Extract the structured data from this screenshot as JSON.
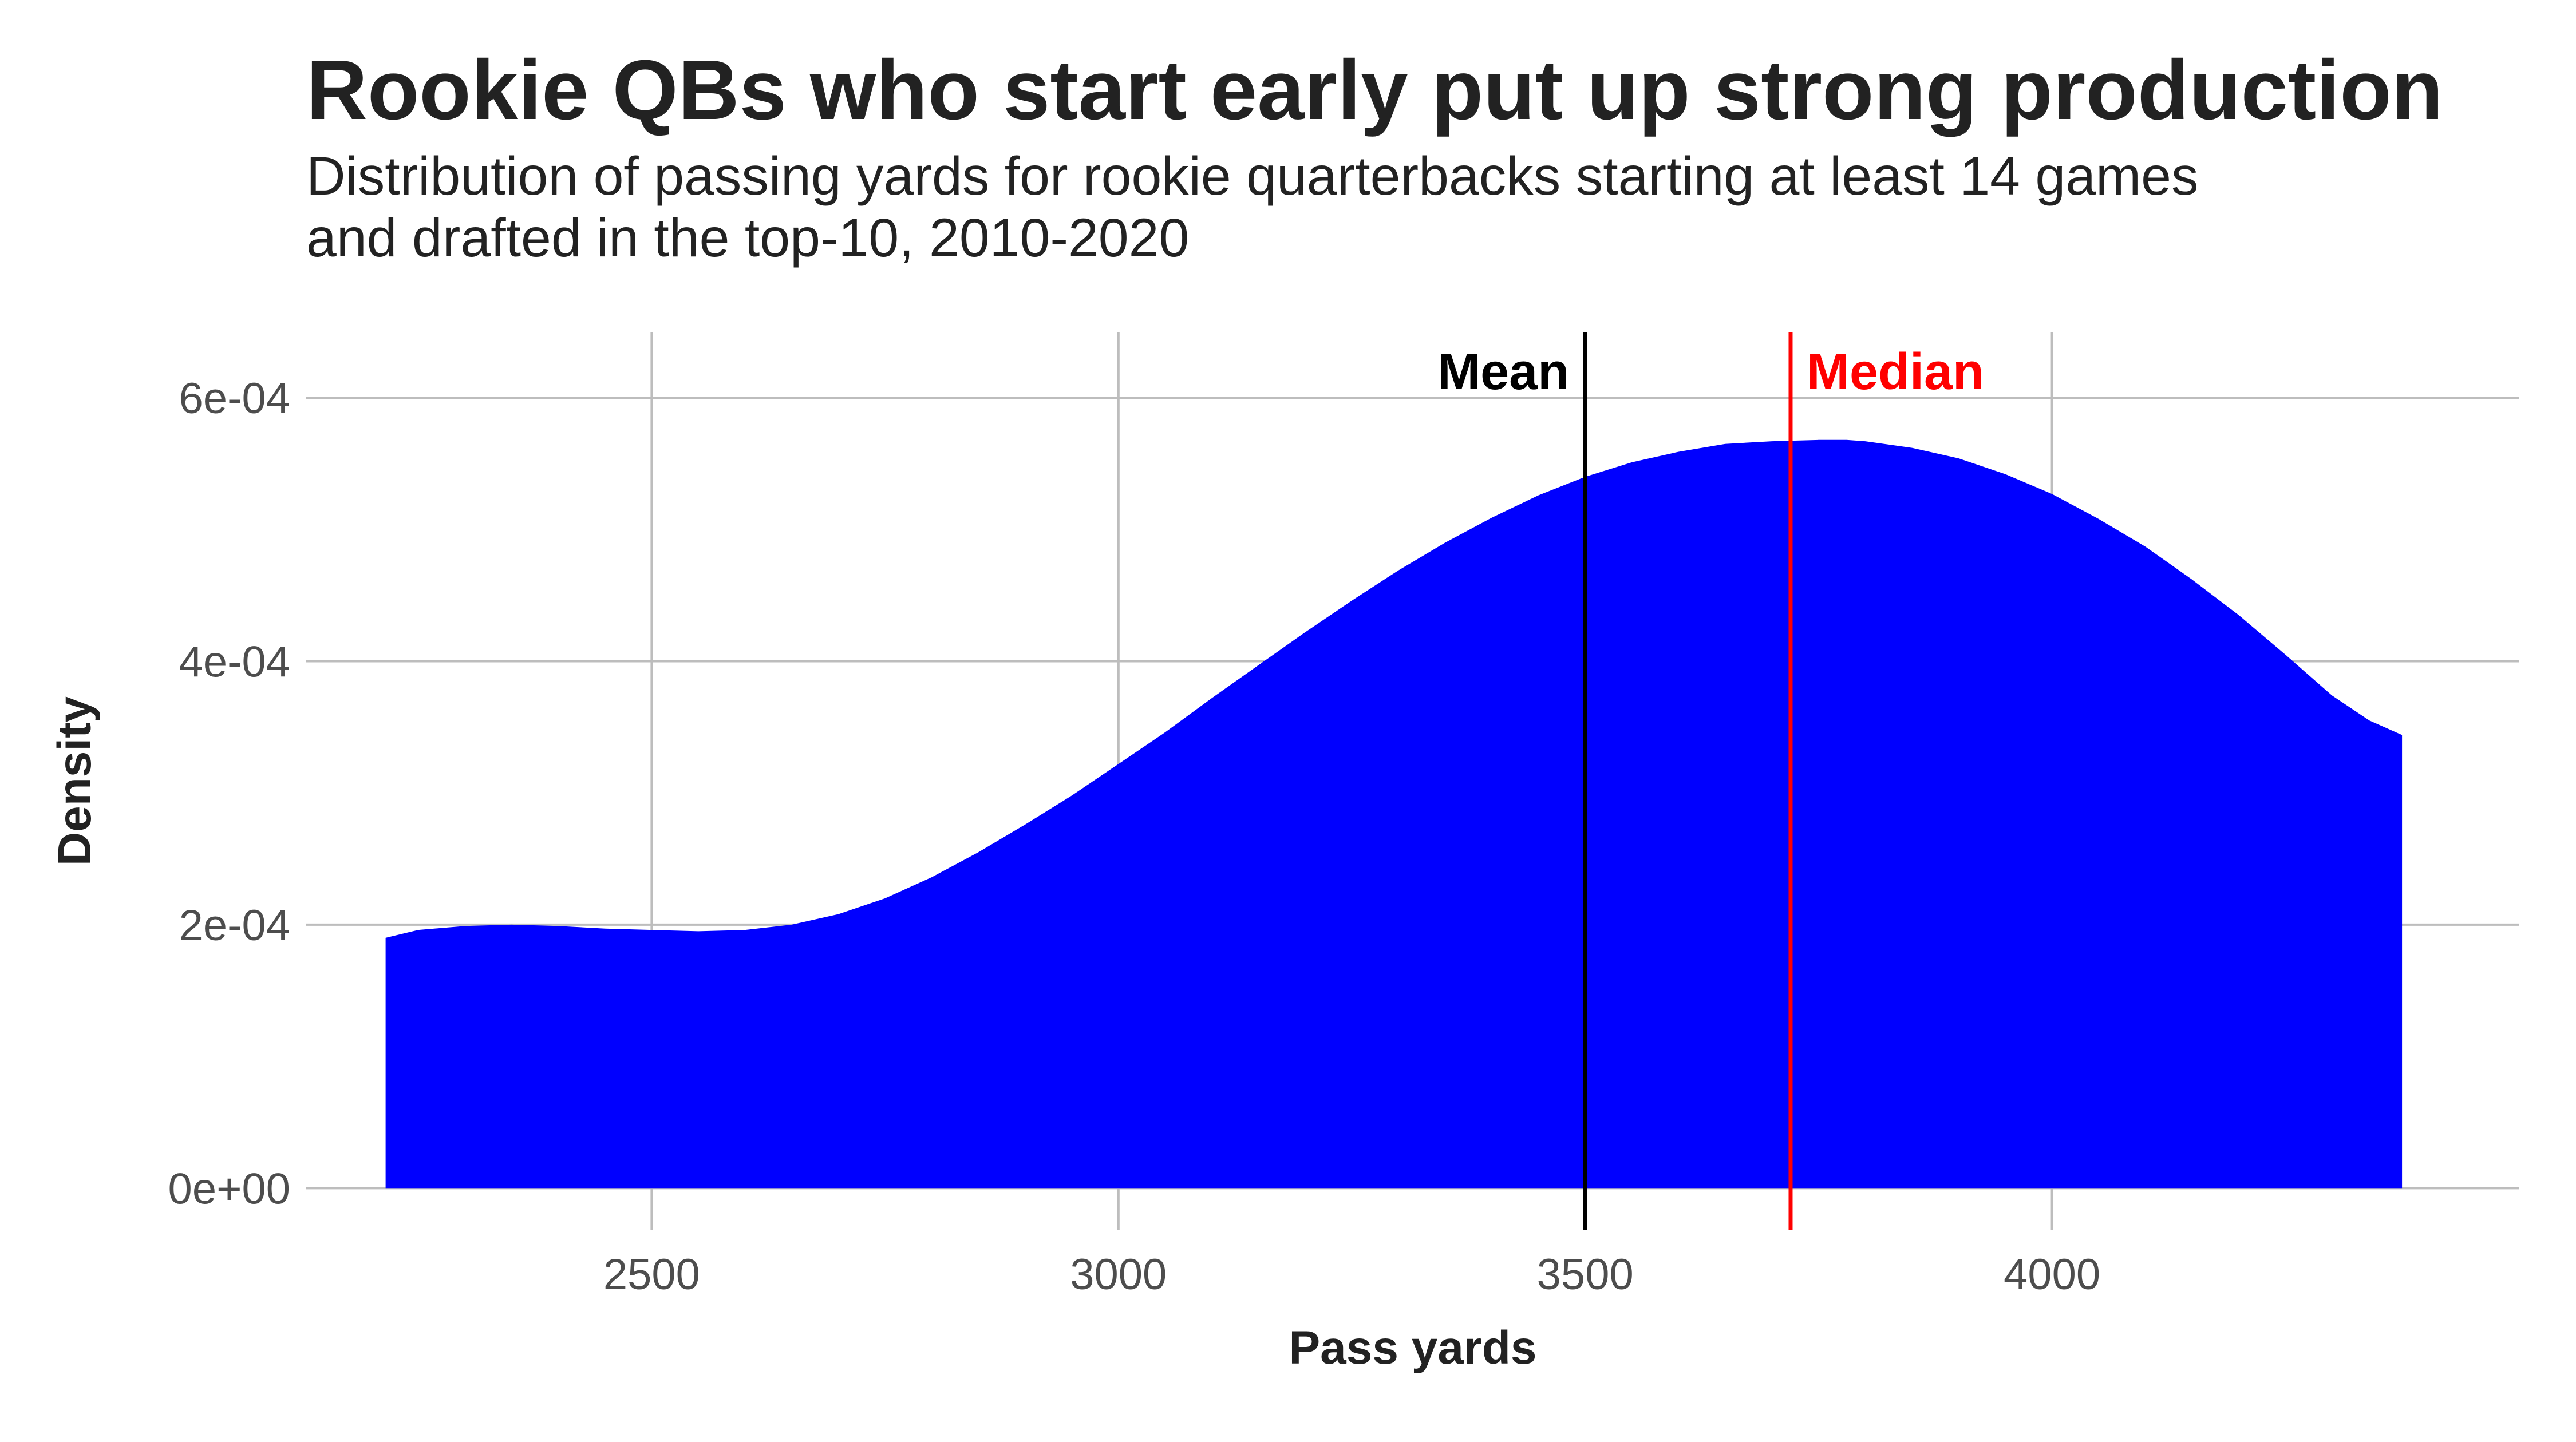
{
  "chart_data": {
    "type": "area",
    "title": "Rookie QBs who start early put up strong production",
    "subtitle": [
      "Distribution of passing yards for rookie quarterbacks starting at least 14 games",
      "and drafted in the top-10, 2010-2020"
    ],
    "xlabel": "Pass yards",
    "ylabel": "Density",
    "xlim": [
      2130,
      4500
    ],
    "ylim": [
      -3.2e-05,
      0.00065
    ],
    "x_ticks": [
      2500,
      3000,
      3500,
      4000
    ],
    "x_tick_labels": [
      "2500",
      "3000",
      "3500",
      "4000"
    ],
    "y_ticks": [
      0,
      0.0002,
      0.0004,
      0.0006
    ],
    "y_tick_labels": [
      "0e+00",
      "2e-04",
      "4e-04",
      "6e-04"
    ],
    "grid": true,
    "fill_color": "#0000ff",
    "series": [
      {
        "x": [
          2215,
          2250,
          2300,
          2350,
          2400,
          2450,
          2500,
          2550,
          2600,
          2650,
          2700,
          2750,
          2800,
          2850,
          2900,
          2950,
          3000,
          3050,
          3100,
          3150,
          3200,
          3250,
          3300,
          3350,
          3400,
          3450,
          3500,
          3550,
          3600,
          3650,
          3700,
          3750,
          3780,
          3800,
          3850,
          3900,
          3950,
          4000,
          4050,
          4100,
          4150,
          4200,
          4250,
          4300,
          4340,
          4375
        ],
        "y": [
          0.00019,
          0.000196,
          0.000199,
          0.0002,
          0.000199,
          0.000197,
          0.000196,
          0.000195,
          0.000196,
          0.0002,
          0.000208,
          0.00022,
          0.000236,
          0.000255,
          0.000276,
          0.000298,
          0.000322,
          0.000346,
          0.000372,
          0.000397,
          0.000422,
          0.000446,
          0.000469,
          0.00049,
          0.000509,
          0.000526,
          0.00054,
          0.000551,
          0.000559,
          0.000565,
          0.000567,
          0.000568,
          0.000568,
          0.000567,
          0.000562,
          0.000554,
          0.000542,
          0.000527,
          0.000508,
          0.000487,
          0.000462,
          0.000435,
          0.000405,
          0.000374,
          0.000355,
          0.000344
        ]
      }
    ],
    "reference_lines": [
      {
        "label": "Mean",
        "x": 3500,
        "color": "#000000"
      },
      {
        "label": "Median",
        "x": 3720,
        "color": "#ff0000"
      }
    ]
  }
}
